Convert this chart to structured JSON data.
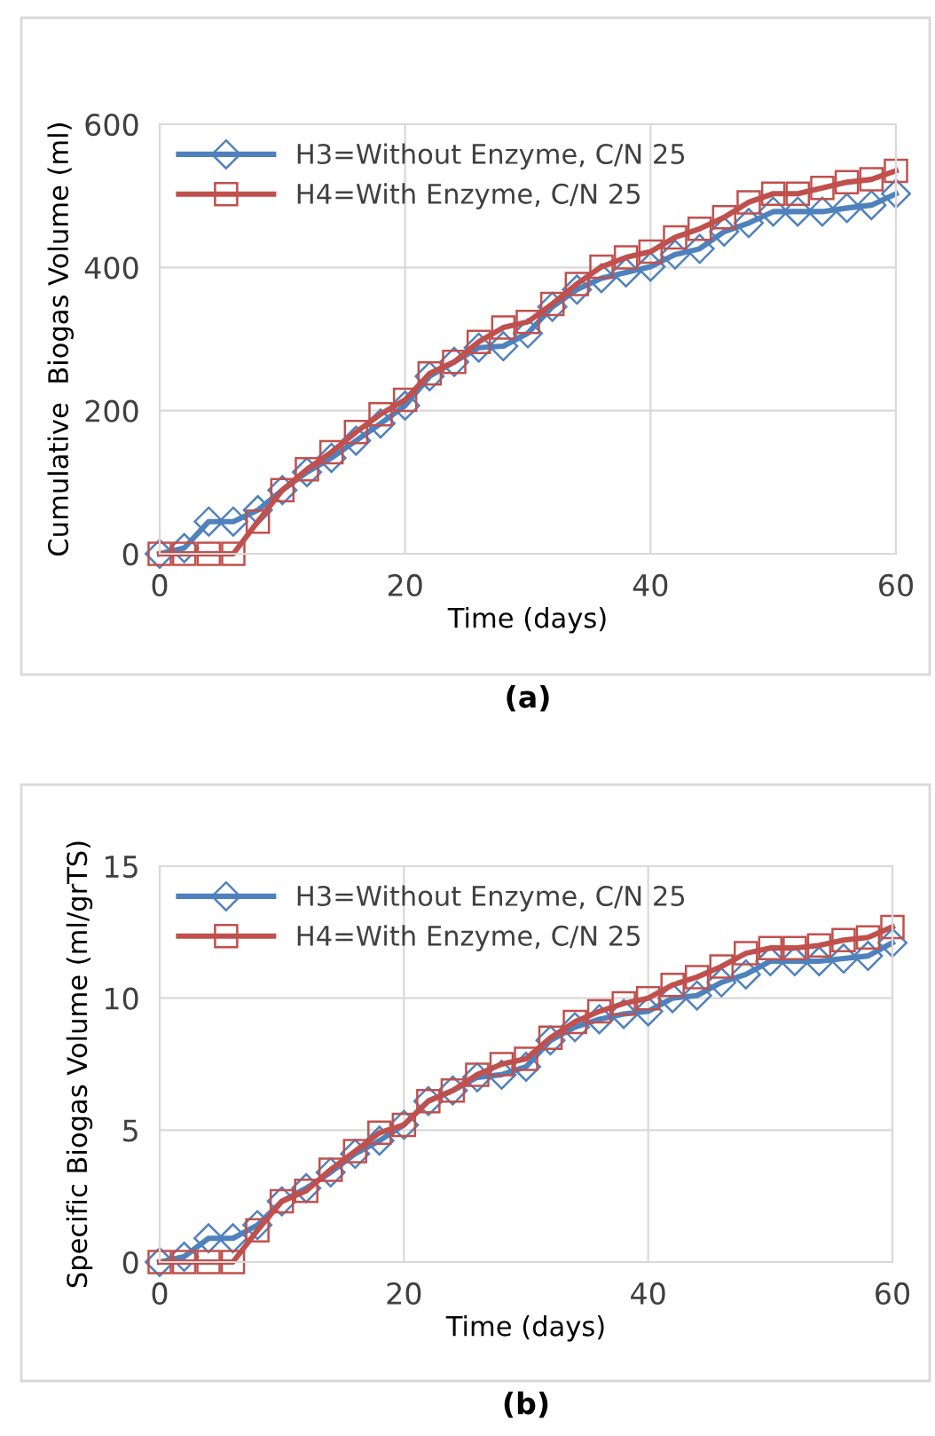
{
  "chart_data": [
    {
      "type": "line",
      "xlabel": "Time (days)",
      "ylabel": "Cumulative  Biogas Volume (ml)",
      "annotations": [
        "(a)"
      ],
      "x": [
        0,
        2,
        4,
        6,
        8,
        10,
        12,
        14,
        16,
        18,
        20,
        22,
        24,
        26,
        28,
        30,
        32,
        34,
        36,
        38,
        40,
        42,
        44,
        46,
        48,
        50,
        52,
        54,
        56,
        58,
        60
      ],
      "series": [
        {
          "name": "H3=Without Enzyme, C/N 25",
          "color": "#4f81bd",
          "marker": "diamond",
          "values": [
            0,
            8,
            45,
            45,
            61,
            89,
            114,
            134,
            158,
            182,
            207,
            248,
            268,
            288,
            290,
            308,
            345,
            369,
            385,
            393,
            401,
            418,
            426,
            450,
            462,
            478,
            478,
            478,
            483,
            487,
            503
          ]
        },
        {
          "name": "H4=With Enzyme, C/N 25",
          "color": "#c0504d",
          "marker": "square",
          "values": [
            0,
            0,
            0,
            0,
            45,
            89,
            118,
            142,
            170,
            195,
            215,
            252,
            268,
            296,
            316,
            324,
            349,
            377,
            401,
            414,
            422,
            442,
            454,
            470,
            491,
            503,
            503,
            511,
            519,
            523,
            535
          ]
        }
      ],
      "xlim": [
        0,
        60
      ],
      "xticks": [
        0,
        20,
        40,
        60
      ],
      "ylim": [
        0,
        600
      ],
      "yticks": [
        0,
        200,
        400,
        600
      ],
      "grid": true,
      "legend": "top left",
      "line_style": "solid"
    },
    {
      "type": "line",
      "xlabel": "Time (days)",
      "ylabel": "Specific Biogas Volume (ml/grTS)",
      "annotations": [
        "(b)"
      ],
      "x": [
        0,
        2,
        4,
        6,
        8,
        10,
        12,
        14,
        16,
        18,
        20,
        22,
        24,
        26,
        28,
        30,
        32,
        34,
        36,
        38,
        40,
        42,
        44,
        46,
        48,
        50,
        52,
        54,
        56,
        58,
        60
      ],
      "series": [
        {
          "name": "H3=Without Enzyme, C/N 25",
          "color": "#4f81bd",
          "marker": "diamond",
          "values": [
            0,
            0.2,
            0.9,
            0.9,
            1.4,
            2.3,
            2.8,
            3.4,
            4.1,
            4.6,
            5.2,
            6.1,
            6.5,
            7.0,
            7.1,
            7.4,
            8.4,
            8.9,
            9.2,
            9.4,
            9.5,
            10.0,
            10.1,
            10.6,
            10.9,
            11.4,
            11.4,
            11.4,
            11.5,
            11.6,
            12.1
          ]
        },
        {
          "name": "H4=With Enzyme, C/N 25",
          "color": "#c0504d",
          "marker": "square",
          "values": [
            0,
            0,
            0,
            0,
            1.2,
            2.3,
            2.7,
            3.5,
            4.2,
            4.9,
            5.2,
            6.1,
            6.5,
            7.1,
            7.5,
            7.7,
            8.5,
            9.1,
            9.5,
            9.8,
            10.0,
            10.5,
            10.8,
            11.2,
            11.7,
            11.9,
            11.9,
            12.0,
            12.2,
            12.3,
            12.7
          ]
        }
      ],
      "xlim": [
        0,
        60
      ],
      "xticks": [
        0,
        20,
        40,
        60
      ],
      "ylim": [
        0,
        15
      ],
      "yticks": [
        0,
        5,
        10,
        15
      ],
      "grid": true,
      "legend": "top left",
      "line_style": "solid"
    }
  ]
}
